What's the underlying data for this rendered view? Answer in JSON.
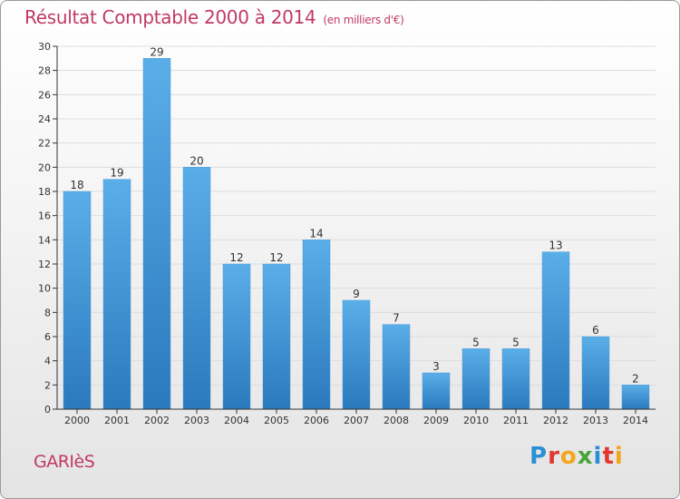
{
  "title": "Résultat Comptable 2000 à 2014",
  "subtitle": "(en milliers d'€)",
  "commune": "GARIèS",
  "logo": "Proxiti",
  "colors": {
    "bar_top": "#5aaee8",
    "bar_bottom": "#2a79bd",
    "title": "#c03a63",
    "grid": "#dddddd",
    "axis": "#333333"
  },
  "chart_data": {
    "type": "bar",
    "title": "Résultat Comptable 2000 à 2014",
    "subtitle": "(en milliers d'€)",
    "xlabel": "",
    "ylabel": "",
    "ylim": [
      0,
      30
    ],
    "y_ticks": [
      0,
      2,
      4,
      6,
      8,
      10,
      12,
      14,
      16,
      18,
      20,
      22,
      24,
      26,
      28,
      30
    ],
    "categories": [
      "2000",
      "2001",
      "2002",
      "2003",
      "2004",
      "2005",
      "2006",
      "2007",
      "2008",
      "2009",
      "2010",
      "2011",
      "2012",
      "2013",
      "2014"
    ],
    "values": [
      18,
      19,
      29,
      20,
      12,
      12,
      14,
      9,
      7,
      3,
      5,
      5,
      13,
      6,
      2
    ],
    "grid": true,
    "legend": "none"
  }
}
